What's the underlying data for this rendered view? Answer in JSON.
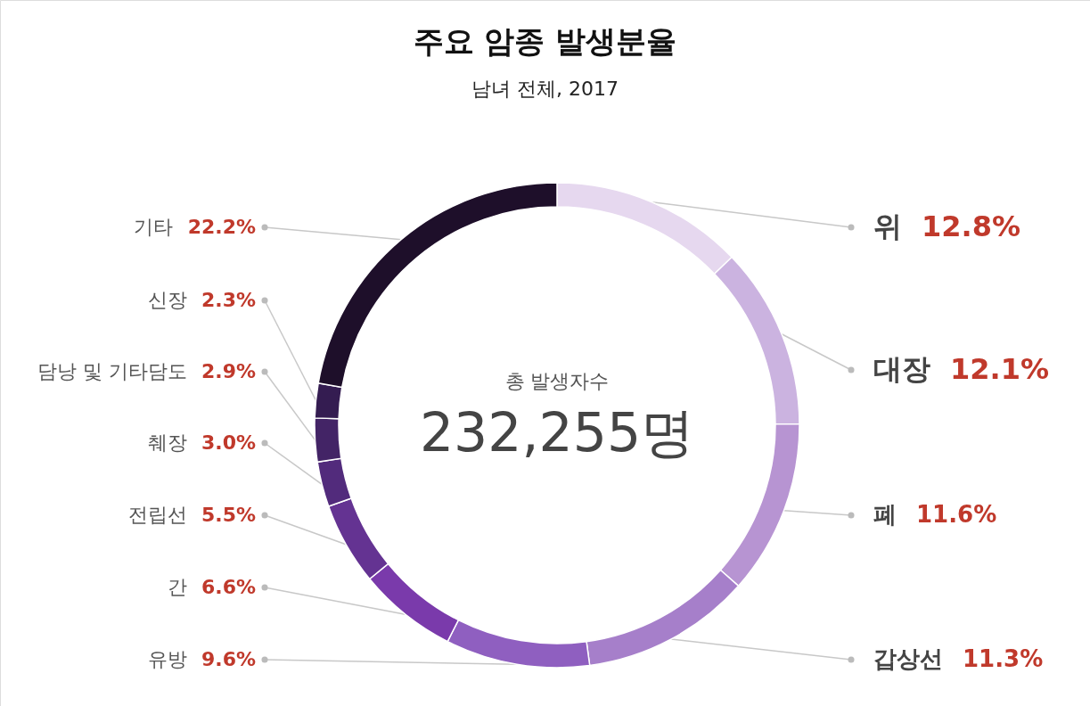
{
  "chart_data": {
    "type": "donut",
    "title": "주요 암종 발생분율",
    "subtitle": "남녀 전체, 2017",
    "categories": [
      "위",
      "대장",
      "폐",
      "갑상선",
      "유방",
      "간",
      "전립선",
      "췌장",
      "담낭 및 기타담도",
      "신장",
      "기타"
    ],
    "values": [
      12.8,
      12.1,
      11.6,
      11.3,
      9.6,
      6.6,
      5.5,
      3.0,
      2.9,
      2.3,
      22.2
    ],
    "value_labels": [
      "12.8%",
      "12.1%",
      "11.6%",
      "11.3%",
      "9.6%",
      "6.6%",
      "5.5%",
      "3.0%",
      "2.9%",
      "2.3%",
      "22.2%"
    ],
    "colors": [
      "#e6d8ef",
      "#cbb3e0",
      "#b794d2",
      "#a67fca",
      "#8f5fc0",
      "#7a3aab",
      "#643392",
      "#522b7c",
      "#432466",
      "#341c51",
      "#1e0f2a"
    ],
    "annotations": [
      "총 발생자수",
      "232,255명"
    ]
  }
}
